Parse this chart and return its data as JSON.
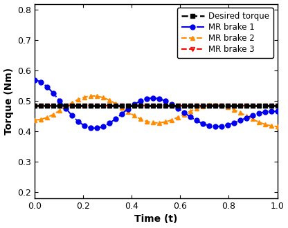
{
  "title": "",
  "xlabel": "Time (t)",
  "ylabel": "Torque (Nm)",
  "xlim": [
    0.0,
    1.0
  ],
  "ylim": [
    0.18,
    0.82
  ],
  "yticks": [
    0.2,
    0.3,
    0.4,
    0.5,
    0.6,
    0.7,
    0.8
  ],
  "xticks": [
    0.0,
    0.2,
    0.4,
    0.6,
    0.8,
    1.0
  ],
  "desired_torque_value": 0.485,
  "legend_labels": [
    "Desired torque",
    "MR brake 1",
    "MR brake 2",
    "MR brake 3"
  ],
  "colors": {
    "desired": "#000000",
    "brake1": "#0000EE",
    "brake2": "#FF8C00",
    "brake3": "#FF0000"
  },
  "figsize": [
    4.16,
    3.3
  ],
  "dpi": 100,
  "brake1_A": 0.085,
  "brake1_decay": 1.2,
  "brake1_freq": 2.0,
  "brake1_drift": 0.045,
  "brake2_A": 0.047,
  "brake2_decay": 0.5,
  "brake2_freq": 2.0,
  "brake2_drift": 0.04,
  "n_markers": 40
}
